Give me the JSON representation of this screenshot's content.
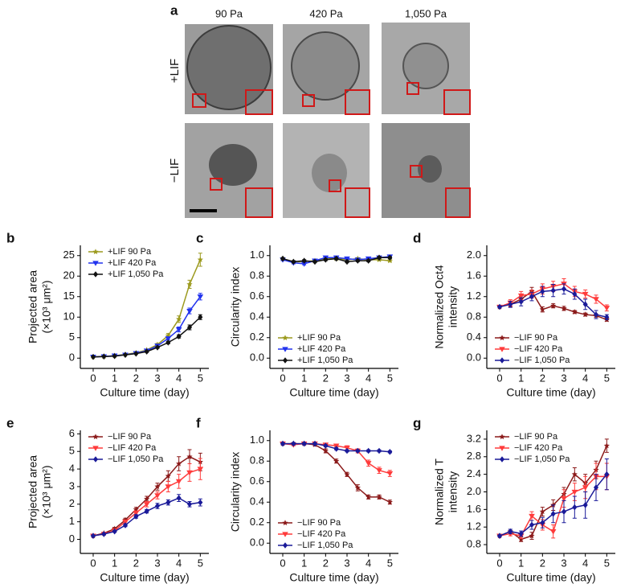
{
  "figure_a": {
    "label": "a",
    "columns": [
      "90 Pa",
      "420 Pa",
      "1,050 Pa"
    ],
    "rows": [
      "+LIF",
      "−LIF"
    ]
  },
  "chart_data": [
    {
      "type": "line",
      "panel": "b",
      "ylabel": [
        "Projected area",
        "(×10³ μm²)"
      ],
      "xlabel": "Culture time (day)",
      "x": [
        0,
        0.5,
        1,
        1.5,
        2,
        2.5,
        3,
        3.5,
        4,
        4.5,
        5
      ],
      "xlim": [
        -0.6,
        5.4
      ],
      "xticks": [
        0,
        1,
        2,
        3,
        4,
        5
      ],
      "ylim": [
        -2.5,
        27.5
      ],
      "yticks": [
        0,
        5,
        10,
        15,
        20,
        25
      ],
      "legend": "upper left",
      "series": [
        {
          "name": "+LIF 90 Pa",
          "color": "#9c9a1e",
          "marker": "star",
          "values": [
            0.3,
            0.4,
            0.6,
            0.9,
            1.3,
            2.0,
            3.3,
            5.5,
            9.5,
            18,
            24
          ],
          "errors": [
            0.1,
            0.1,
            0.1,
            0.1,
            0.2,
            0.2,
            0.3,
            0.5,
            0.8,
            1.0,
            1.6
          ]
        },
        {
          "name": "+LIF 420 Pa",
          "color": "#2233ee",
          "marker": "triangle",
          "values": [
            0.3,
            0.4,
            0.6,
            0.8,
            1.2,
            1.8,
            3.0,
            4.8,
            7.0,
            11.5,
            15
          ],
          "errors": [
            0.1,
            0.1,
            0.1,
            0.1,
            0.1,
            0.2,
            0.3,
            0.4,
            0.6,
            0.7,
            0.8
          ]
        },
        {
          "name": "+LIF 1,050 Pa",
          "color": "#111111",
          "marker": "diamond",
          "values": [
            0.3,
            0.4,
            0.5,
            0.8,
            1.1,
            1.6,
            2.6,
            3.8,
            5.3,
            7.5,
            10
          ],
          "errors": [
            0.1,
            0.1,
            0.1,
            0.1,
            0.1,
            0.2,
            0.2,
            0.3,
            0.4,
            0.6,
            0.6
          ]
        }
      ]
    },
    {
      "type": "line",
      "panel": "c",
      "ylabel": [
        "Circularity index"
      ],
      "xlabel": "Culture time (day)",
      "x": [
        0,
        0.5,
        1,
        1.5,
        2,
        2.5,
        3,
        3.5,
        4,
        4.5,
        5
      ],
      "xlim": [
        -0.6,
        5.4
      ],
      "xticks": [
        0,
        1,
        2,
        3,
        4,
        5
      ],
      "ylim": [
        -0.1,
        1.1
      ],
      "yticks": [
        {
          "value": 0,
          "label": "0.0"
        },
        0.2,
        0.4,
        0.6,
        0.8,
        {
          "value": 1,
          "label": "1.0"
        }
      ],
      "legend": "lower left",
      "series": [
        {
          "name": "+LIF 90 Pa",
          "color": "#9c9a1e",
          "marker": "star",
          "values": [
            0.97,
            0.94,
            0.94,
            0.95,
            0.97,
            0.97,
            0.96,
            0.97,
            0.96,
            0.96,
            0.95
          ],
          "errors": [
            0.01,
            0.01,
            0.01,
            0.01,
            0.01,
            0.01,
            0.01,
            0.01,
            0.01,
            0.01,
            0.01
          ]
        },
        {
          "name": "+LIF 420 Pa",
          "color": "#2233ee",
          "marker": "triangle",
          "values": [
            0.96,
            0.93,
            0.92,
            0.95,
            0.98,
            0.98,
            0.97,
            0.96,
            0.97,
            0.98,
            0.99
          ],
          "errors": [
            0.01,
            0.01,
            0.01,
            0.01,
            0.01,
            0.01,
            0.01,
            0.01,
            0.01,
            0.01,
            0.01
          ]
        },
        {
          "name": "+LIF 1,050 Pa",
          "color": "#111111",
          "marker": "diamond",
          "values": [
            0.97,
            0.94,
            0.95,
            0.94,
            0.96,
            0.97,
            0.94,
            0.95,
            0.95,
            0.98,
            0.98
          ],
          "errors": [
            0.01,
            0.01,
            0.01,
            0.01,
            0.01,
            0.01,
            0.01,
            0.01,
            0.01,
            0.01,
            0.01
          ]
        }
      ]
    },
    {
      "type": "line",
      "panel": "d",
      "ylabel": [
        "Normalized Oct4",
        "intensity"
      ],
      "xlabel": "Culture time (day)",
      "x": [
        0,
        0.5,
        1,
        1.5,
        2,
        2.5,
        3,
        3.5,
        4,
        4.5,
        5
      ],
      "xlim": [
        -0.6,
        5.4
      ],
      "xticks": [
        0,
        1,
        2,
        3,
        4,
        5
      ],
      "ylim": [
        -0.2,
        2.2
      ],
      "yticks": [
        {
          "value": 0,
          "label": "0.0"
        },
        0.4,
        0.8,
        1.2,
        1.6,
        {
          "value": 2,
          "label": "2.0"
        }
      ],
      "legend": "lower left",
      "series": [
        {
          "name": "−LIF 90 Pa",
          "color": "#8b1a1a",
          "marker": "star",
          "values": [
            1.0,
            1.05,
            1.15,
            1.3,
            0.95,
            1.02,
            0.97,
            0.9,
            0.85,
            0.83,
            0.75
          ],
          "errors": [
            0.02,
            0.05,
            0.06,
            0.08,
            0.05,
            0.04,
            0.04,
            0.03,
            0.03,
            0.03,
            0.03
          ]
        },
        {
          "name": "−LIF 420 Pa",
          "color": "#ff3b3b",
          "marker": "triangle",
          "values": [
            1.0,
            1.08,
            1.22,
            1.25,
            1.35,
            1.4,
            1.45,
            1.3,
            1.25,
            1.15,
            0.98
          ],
          "errors": [
            0.02,
            0.06,
            0.08,
            0.08,
            0.1,
            0.1,
            0.1,
            0.1,
            0.08,
            0.08,
            0.06
          ]
        },
        {
          "name": "−LIF 1,050 Pa",
          "color": "#1a1a99",
          "marker": "diamond",
          "values": [
            1.0,
            1.05,
            1.1,
            1.2,
            1.3,
            1.32,
            1.35,
            1.25,
            1.05,
            0.85,
            0.8
          ],
          "errors": [
            0.02,
            0.06,
            0.08,
            0.08,
            0.1,
            0.12,
            0.1,
            0.1,
            0.1,
            0.08,
            0.05
          ]
        }
      ]
    },
    {
      "type": "line",
      "panel": "e",
      "ylabel": [
        "Projected area",
        "(×10³ μm²)"
      ],
      "xlabel": "Culture time (day)",
      "x": [
        0,
        0.5,
        1,
        1.5,
        2,
        2.5,
        3,
        3.5,
        4,
        4.5,
        5
      ],
      "xlim": [
        -0.6,
        5.4
      ],
      "xticks": [
        0,
        1,
        2,
        3,
        4,
        5
      ],
      "ylim": [
        -0.8,
        6.2
      ],
      "yticks": [
        0,
        1,
        2,
        3,
        4,
        5,
        6
      ],
      "legend": "upper left",
      "series": [
        {
          "name": "−LIF 90 Pa",
          "color": "#8b1a1a",
          "marker": "star",
          "values": [
            0.2,
            0.35,
            0.6,
            1.1,
            1.7,
            2.3,
            3.0,
            3.6,
            4.3,
            4.7,
            4.4
          ],
          "errors": [
            0.05,
            0.05,
            0.08,
            0.1,
            0.12,
            0.15,
            0.2,
            0.3,
            0.4,
            0.4,
            0.5
          ]
        },
        {
          "name": "−LIF 420 Pa",
          "color": "#ff3b3b",
          "marker": "triangle",
          "values": [
            0.2,
            0.3,
            0.5,
            1.0,
            1.5,
            2.0,
            2.5,
            3.0,
            3.3,
            3.8,
            4.0
          ],
          "errors": [
            0.05,
            0.05,
            0.08,
            0.1,
            0.12,
            0.15,
            0.2,
            0.3,
            0.4,
            0.5,
            0.6
          ]
        },
        {
          "name": "−LIF 1,050 Pa",
          "color": "#1a1a99",
          "marker": "diamond",
          "values": [
            0.2,
            0.3,
            0.45,
            0.8,
            1.3,
            1.6,
            1.9,
            2.1,
            2.35,
            2.0,
            2.1
          ],
          "errors": [
            0.05,
            0.05,
            0.05,
            0.08,
            0.1,
            0.1,
            0.15,
            0.15,
            0.2,
            0.15,
            0.2
          ]
        }
      ]
    },
    {
      "type": "line",
      "panel": "f",
      "ylabel": [
        "Circularity index"
      ],
      "xlabel": "Culture time (day)",
      "x": [
        0,
        0.5,
        1,
        1.5,
        2,
        2.5,
        3,
        3.5,
        4,
        4.5,
        5
      ],
      "xlim": [
        -0.6,
        5.4
      ],
      "xticks": [
        0,
        1,
        2,
        3,
        4,
        5
      ],
      "ylim": [
        -0.1,
        1.1
      ],
      "yticks": [
        {
          "value": 0,
          "label": "0.0"
        },
        0.2,
        0.4,
        0.6,
        0.8,
        {
          "value": 1,
          "label": "1.0"
        }
      ],
      "legend": "lower left",
      "series": [
        {
          "name": "−LIF 90 Pa",
          "color": "#8b1a1a",
          "marker": "star",
          "values": [
            0.97,
            0.97,
            0.97,
            0.96,
            0.9,
            0.8,
            0.67,
            0.54,
            0.45,
            0.45,
            0.4
          ],
          "errors": [
            0.01,
            0.01,
            0.01,
            0.01,
            0.02,
            0.02,
            0.02,
            0.03,
            0.02,
            0.02,
            0.02
          ]
        },
        {
          "name": "−LIF 420 Pa",
          "color": "#ff3b3b",
          "marker": "triangle",
          "values": [
            0.97,
            0.96,
            0.97,
            0.97,
            0.96,
            0.95,
            0.93,
            0.9,
            0.78,
            0.71,
            0.68
          ],
          "errors": [
            0.01,
            0.01,
            0.01,
            0.01,
            0.01,
            0.01,
            0.02,
            0.02,
            0.03,
            0.03,
            0.03
          ]
        },
        {
          "name": "−LIF 1,050 Pa",
          "color": "#1a1a99",
          "marker": "diamond",
          "values": [
            0.97,
            0.97,
            0.97,
            0.97,
            0.95,
            0.92,
            0.9,
            0.9,
            0.9,
            0.9,
            0.89
          ],
          "errors": [
            0.01,
            0.01,
            0.01,
            0.01,
            0.01,
            0.01,
            0.01,
            0.01,
            0.01,
            0.01,
            0.01
          ]
        }
      ]
    },
    {
      "type": "line",
      "panel": "g",
      "ylabel": [
        "Normalized T",
        "intensity"
      ],
      "xlabel": "Culture time (day)",
      "x": [
        0,
        0.5,
        1,
        1.5,
        2,
        2.5,
        3,
        3.5,
        4,
        4.5,
        5
      ],
      "xlim": [
        -0.6,
        5.4
      ],
      "xticks": [
        0,
        1,
        2,
        3,
        4,
        5
      ],
      "ylim": [
        0.6,
        3.4
      ],
      "yticks": [
        0.8,
        1.2,
        1.6,
        {
          "value": 2,
          "label": "2.0"
        },
        2.4,
        2.8,
        3.2
      ],
      "legend": "upper left",
      "series": [
        {
          "name": "−LIF 90 Pa",
          "color": "#8b1a1a",
          "marker": "star",
          "values": [
            1.0,
            1.1,
            0.92,
            1.0,
            1.55,
            1.7,
            1.95,
            2.4,
            2.2,
            2.5,
            3.05
          ],
          "errors": [
            0.02,
            0.05,
            0.05,
            0.08,
            0.1,
            0.12,
            0.15,
            0.15,
            0.2,
            0.2,
            0.15
          ]
        },
        {
          "name": "−LIF 420 Pa",
          "color": "#ff3b3b",
          "marker": "triangle",
          "values": [
            1.0,
            1.05,
            1.0,
            1.45,
            1.25,
            1.1,
            1.85,
            2.0,
            2.1,
            2.35,
            2.35
          ],
          "errors": [
            0.02,
            0.05,
            0.06,
            0.1,
            0.12,
            0.15,
            0.2,
            0.2,
            0.25,
            0.3,
            0.3
          ]
        },
        {
          "name": "−LIF 1,050 Pa",
          "color": "#1a1a99",
          "marker": "diamond",
          "values": [
            1.0,
            1.1,
            1.05,
            1.25,
            1.3,
            1.5,
            1.55,
            1.65,
            1.7,
            2.1,
            2.4
          ],
          "errors": [
            0.02,
            0.05,
            0.06,
            0.1,
            0.12,
            0.2,
            0.25,
            0.25,
            0.3,
            0.3,
            0.35
          ]
        }
      ]
    }
  ]
}
